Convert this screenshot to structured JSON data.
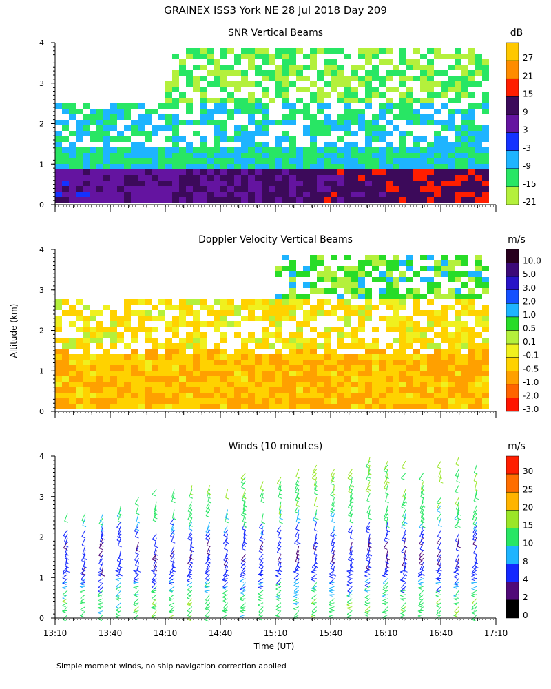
{
  "title": "GRAINEX ISS3 York NE  28 Jul 2018 Day 209",
  "footnote": "Simple moment winds, no ship navigation correction applied",
  "ylabel": "Altitude (km)",
  "xlabel": "Time (UT)",
  "chart_data": [
    {
      "type": "heatmap",
      "title": "SNR Vertical Beams",
      "unit": "dB",
      "x_ticks": [
        "13:10",
        "13:40",
        "14:10",
        "14:40",
        "15:10",
        "15:40",
        "16:10",
        "16:40",
        "17:10"
      ],
      "xlim": [
        "13:10",
        "17:10"
      ],
      "y_ticks": [
        "0",
        "1",
        "2",
        "3",
        "4"
      ],
      "ylim": [
        0,
        4
      ],
      "colorbar": {
        "labels": [
          "27",
          "21",
          "15",
          "9",
          "3",
          "-3",
          "-9",
          "-15",
          "-21"
        ],
        "colors": [
          "#ffc800",
          "#ff8c00",
          "#ff1e00",
          "#3c0a5a",
          "#6414a0",
          "#1432ff",
          "#1eb4ff",
          "#28e664",
          "#b4f03c"
        ]
      },
      "layers": [
        {
          "from_km": 0.1,
          "to_km": 0.9,
          "value_db_start": 3,
          "value_db_end": 12,
          "note": "strong boundary-layer return, rising toward end"
        },
        {
          "from_km": 0.9,
          "to_km": 2.6,
          "value_db": -12
        },
        {
          "from_km": 2.6,
          "to_km": 4.0,
          "value_db": -18,
          "start_time": "14:10"
        }
      ]
    },
    {
      "type": "heatmap",
      "title": "Doppler Velocity Vertical Beams",
      "unit": "m/s",
      "x_ticks": [
        "13:10",
        "13:40",
        "14:10",
        "14:40",
        "15:10",
        "15:40",
        "16:10",
        "16:40",
        "17:10"
      ],
      "xlim": [
        "13:10",
        "17:10"
      ],
      "y_ticks": [
        "0",
        "1",
        "2",
        "3",
        "4"
      ],
      "ylim": [
        0,
        4
      ],
      "colorbar": {
        "labels": [
          "10.0",
          "5.0",
          "3.0",
          "2.0",
          "1.0",
          "0.5",
          "0.1",
          "-0.1",
          "-0.5",
          "-1.0",
          "-2.0",
          "-3.0"
        ],
        "colors": [
          "#28001e",
          "#3c0a78",
          "#2814c8",
          "#1450ff",
          "#1eb4ff",
          "#28dc28",
          "#b4f03c",
          "#f0f01e",
          "#ffd200",
          "#ffa000",
          "#ff6400",
          "#ff1400"
        ]
      },
      "layers": [
        {
          "from_km": 0.1,
          "to_km": 1.6,
          "value_ms": -0.7
        },
        {
          "from_km": 1.6,
          "to_km": 2.9,
          "value_ms": -0.3
        },
        {
          "from_km": 2.9,
          "to_km": 4.0,
          "value_ms": 0.5,
          "start_time": "15:10"
        }
      ]
    },
    {
      "type": "wind_barbs",
      "title": "Winds (10 minutes)",
      "unit": "m/s",
      "x_ticks": [
        "13:10",
        "13:40",
        "14:10",
        "14:40",
        "15:10",
        "15:40",
        "16:10",
        "16:40",
        "17:10"
      ],
      "xlim": [
        "13:10",
        "17:10"
      ],
      "y_ticks": [
        "0",
        "1",
        "2",
        "3",
        "4"
      ],
      "ylim": [
        0,
        4
      ],
      "colorbar": {
        "labels": [
          "30",
          "25",
          "20",
          "15",
          "10",
          "8",
          "4",
          "2",
          "0"
        ],
        "colors": [
          "#ff1e00",
          "#ff6e00",
          "#ffb400",
          "#9be628",
          "#28e664",
          "#1eb4ff",
          "#1428ff",
          "#500a78",
          "#000000"
        ]
      },
      "profile": [
        {
          "alt_km": 0.5,
          "speed_ms": 12
        },
        {
          "alt_km": 1.2,
          "speed_ms": 5
        },
        {
          "alt_km": 2.0,
          "speed_ms": 4
        },
        {
          "alt_km": 2.8,
          "speed_ms": 12
        },
        {
          "alt_km": 3.6,
          "speed_ms": 15
        }
      ]
    }
  ]
}
